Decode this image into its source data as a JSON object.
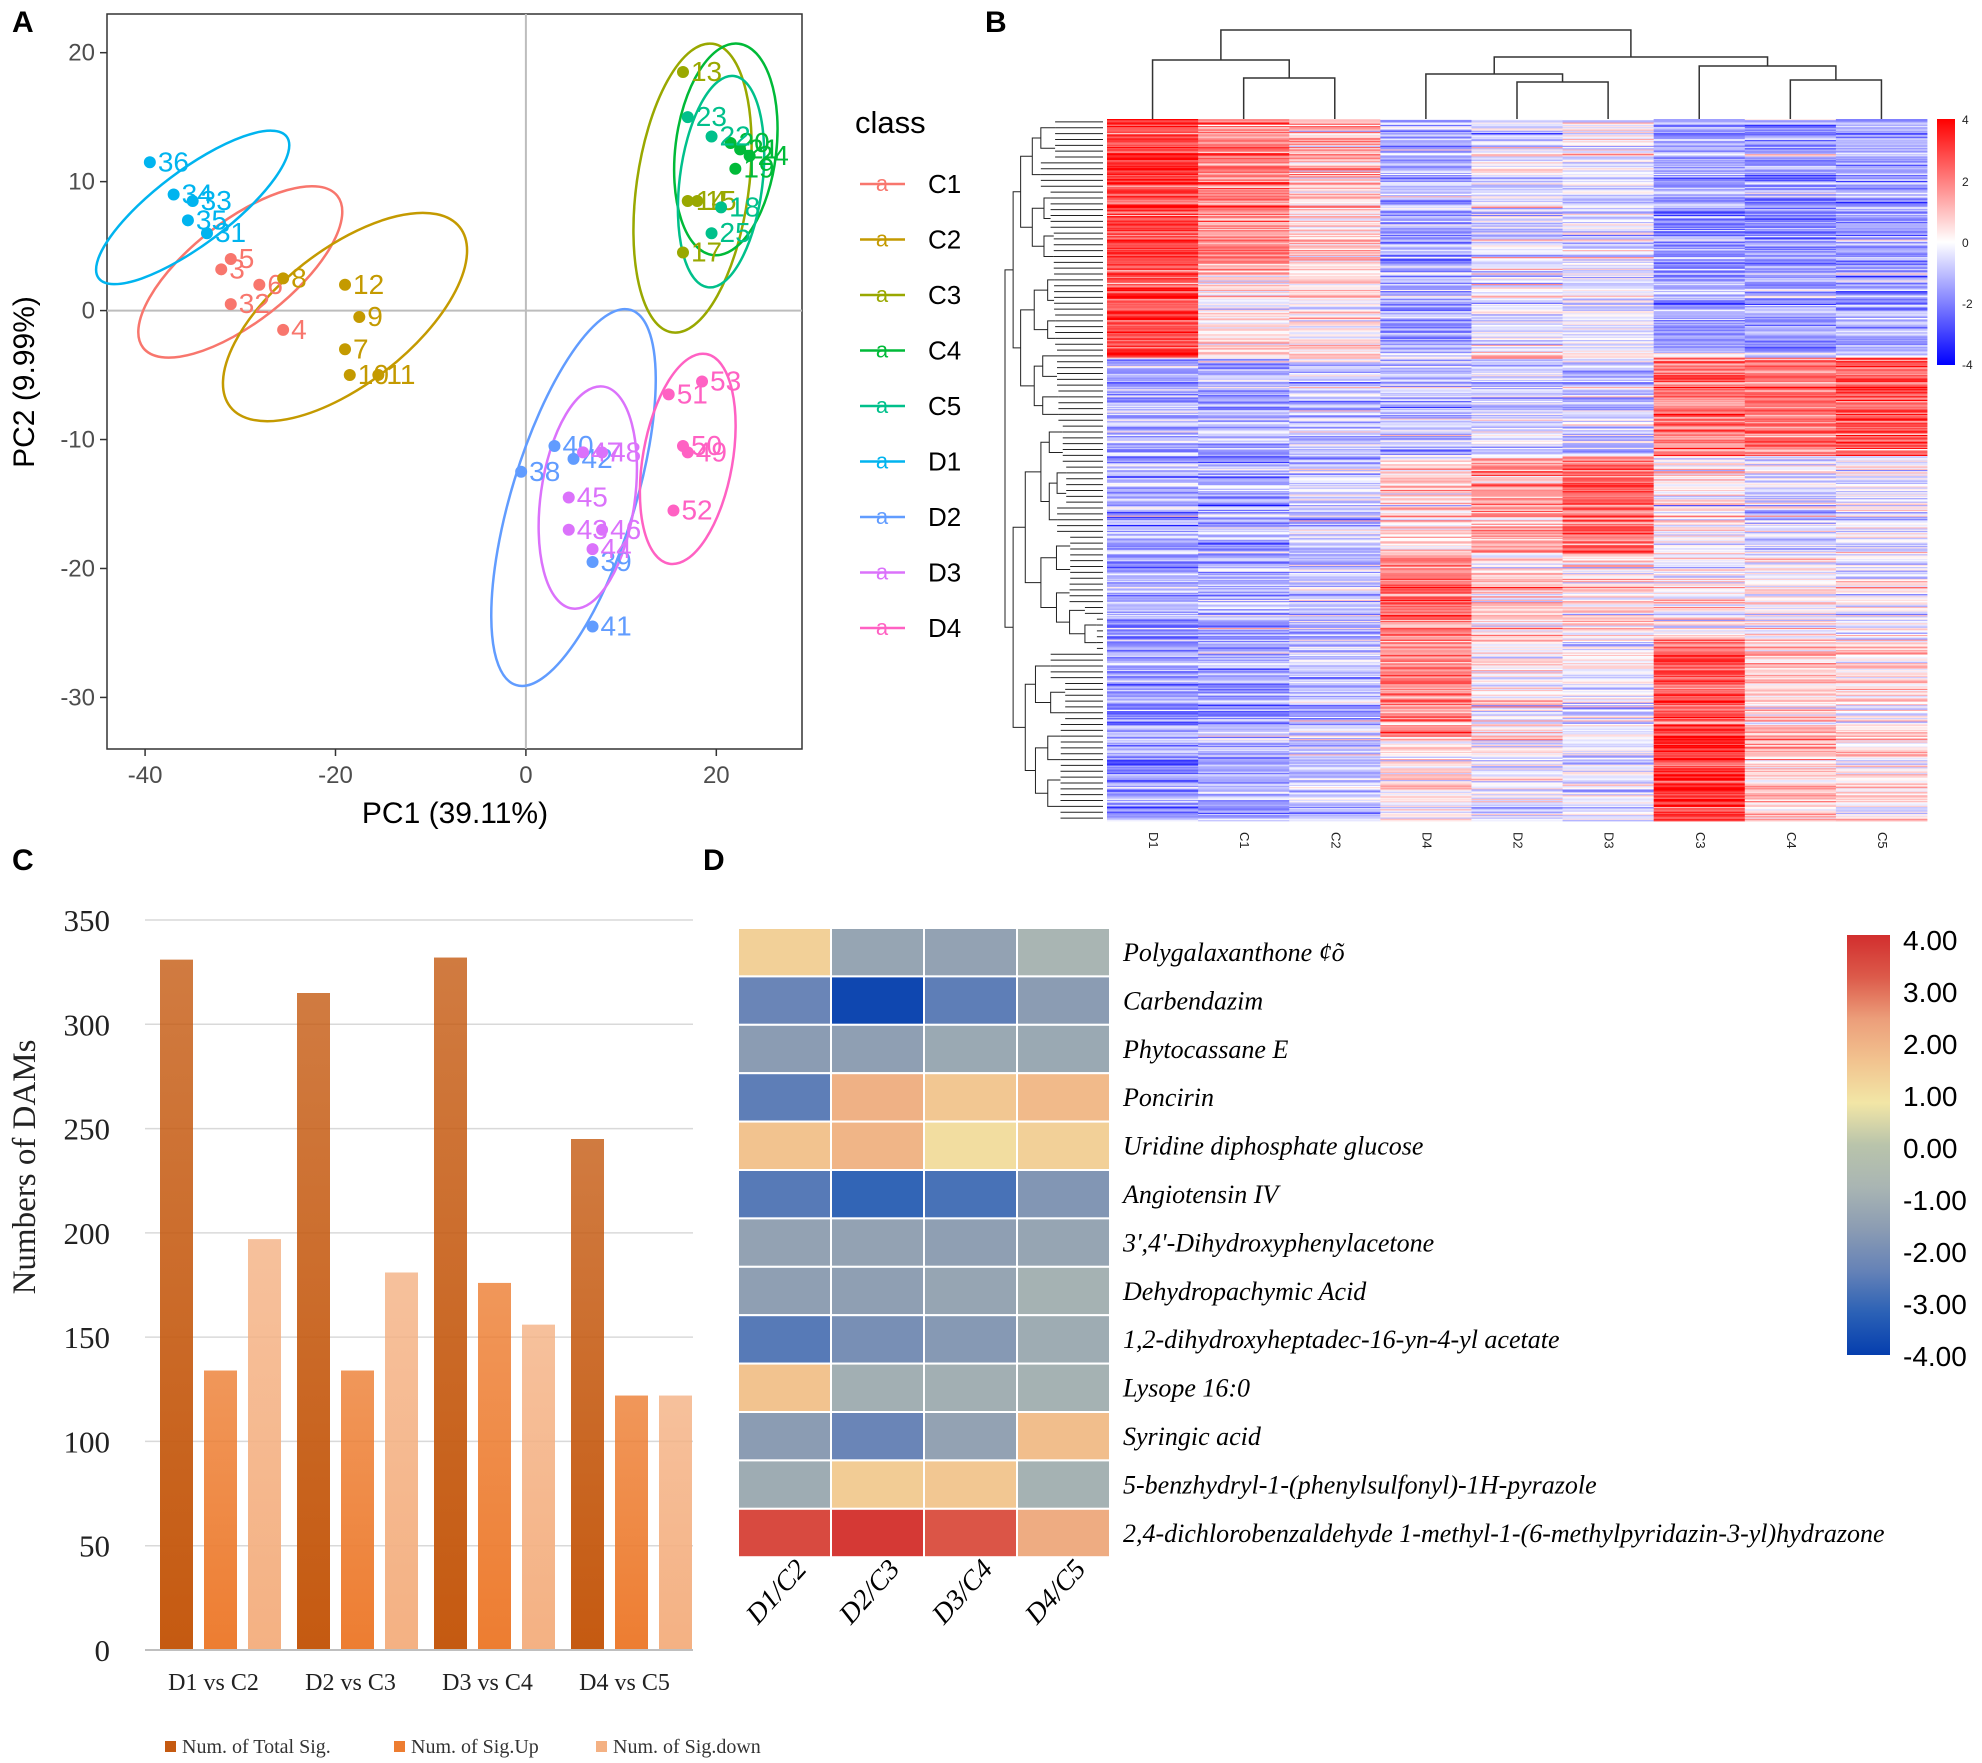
{
  "panels": {
    "A": "A",
    "B": "B",
    "C": "C",
    "D": "D"
  },
  "chart_data": [
    {
      "panel": "A",
      "type": "scatter",
      "xlabel": "PC1 (39.11%)",
      "ylabel": "PC2 (9.99%)",
      "xlim": [
        -44,
        29
      ],
      "ylim": [
        -34,
        23
      ],
      "xticks": [
        -40,
        -20,
        0,
        20
      ],
      "yticks": [
        20,
        10,
        0,
        -10,
        -20,
        -30
      ],
      "legend_title": "class",
      "legend_key_glyph": "a",
      "groups": [
        {
          "name": "C1",
          "color": "#F8766D",
          "ellipse": {
            "cx": -30,
            "cy": 3,
            "rx": 11,
            "ry": 4.5,
            "angle": -38
          },
          "points": [
            {
              "x": -31,
              "y": 4,
              "label": "5"
            },
            {
              "x": -32,
              "y": 3.2,
              "label": "3"
            },
            {
              "x": -28,
              "y": 2,
              "label": "6"
            },
            {
              "x": -31,
              "y": 0.5,
              "label": "32"
            },
            {
              "x": -25.5,
              "y": -1.5,
              "label": "4"
            }
          ]
        },
        {
          "name": "C2",
          "color": "#C49A00",
          "ellipse": {
            "cx": -19,
            "cy": -0.5,
            "rx": 13,
            "ry": 6,
            "angle": -38
          },
          "points": [
            {
              "x": -25.5,
              "y": 2.5,
              "label": "8"
            },
            {
              "x": -19,
              "y": 2,
              "label": "12"
            },
            {
              "x": -17.5,
              "y": -0.5,
              "label": "9"
            },
            {
              "x": -19,
              "y": -3,
              "label": "7"
            },
            {
              "x": -18.5,
              "y": -5,
              "label": "10"
            },
            {
              "x": -15.5,
              "y": -5,
              "label": "11"
            }
          ]
        },
        {
          "name": "C3",
          "color": "#99A800",
          "ellipse": {
            "cx": 17.5,
            "cy": 9.5,
            "rx": 13,
            "ry": 5,
            "angle": -82
          },
          "points": [
            {
              "x": 16.5,
              "y": 18.5,
              "label": "13"
            },
            {
              "x": 17,
              "y": 8.5,
              "label": "14"
            },
            {
              "x": 18,
              "y": 8.5,
              "label": "15"
            },
            {
              "x": 16.5,
              "y": 4.5,
              "label": "17"
            }
          ]
        },
        {
          "name": "C4",
          "color": "#00BA38",
          "ellipse": {
            "cx": 21,
            "cy": 12.5,
            "rx": 9.5,
            "ry": 4.5,
            "angle": -83
          },
          "points": [
            {
              "x": 21.5,
              "y": 13,
              "label": "20"
            },
            {
              "x": 22.5,
              "y": 12.5,
              "label": "21"
            },
            {
              "x": 23.5,
              "y": 12,
              "label": "24"
            },
            {
              "x": 22,
              "y": 11,
              "label": "19"
            }
          ]
        },
        {
          "name": "C5",
          "color": "#00C08B",
          "ellipse": {
            "cx": 20.5,
            "cy": 10,
            "rx": 9.5,
            "ry": 3.7,
            "angle": -83
          },
          "points": [
            {
              "x": 17,
              "y": 15,
              "label": "23"
            },
            {
              "x": 19.5,
              "y": 13.5,
              "label": "22"
            },
            {
              "x": 20.5,
              "y": 8,
              "label": "18"
            },
            {
              "x": 19.5,
              "y": 6,
              "label": "25"
            }
          ]
        },
        {
          "name": "D1",
          "color": "#00B4EF",
          "ellipse": {
            "cx": -35,
            "cy": 8,
            "rx": 10.5,
            "ry": 3.3,
            "angle": -37
          },
          "points": [
            {
              "x": -39.5,
              "y": 11.5,
              "label": "36"
            },
            {
              "x": -37,
              "y": 9,
              "label": "34"
            },
            {
              "x": -35,
              "y": 8.5,
              "label": "33"
            },
            {
              "x": -35.5,
              "y": 7,
              "label": "35"
            },
            {
              "x": -33.5,
              "y": 6,
              "label": "31"
            }
          ]
        },
        {
          "name": "D2",
          "color": "#619CFF",
          "ellipse": {
            "cx": 5,
            "cy": -14.5,
            "rx": 17.5,
            "ry": 5.5,
            "angle": -73
          },
          "points": [
            {
              "x": -0.5,
              "y": -12.5,
              "label": "38"
            },
            {
              "x": 3,
              "y": -10.5,
              "label": "40"
            },
            {
              "x": 5,
              "y": -11.5,
              "label": "42"
            },
            {
              "x": 7,
              "y": -19.5,
              "label": "39"
            },
            {
              "x": 7,
              "y": -24.5,
              "label": "41"
            }
          ]
        },
        {
          "name": "D3",
          "color": "#DB72FB",
          "ellipse": {
            "cx": 6.5,
            "cy": -14.5,
            "rx": 10,
            "ry": 4.2,
            "angle": -82
          },
          "points": [
            {
              "x": 6,
              "y": -11,
              "label": "47"
            },
            {
              "x": 8,
              "y": -11,
              "label": "48"
            },
            {
              "x": 4.5,
              "y": -14.5,
              "label": "45"
            },
            {
              "x": 4.5,
              "y": -17,
              "label": "43"
            },
            {
              "x": 8,
              "y": -17,
              "label": "46"
            },
            {
              "x": 7,
              "y": -18.5,
              "label": "44"
            }
          ]
        },
        {
          "name": "D4",
          "color": "#FF61C3",
          "ellipse": {
            "cx": 17,
            "cy": -11.5,
            "rx": 9.5,
            "ry": 4,
            "angle": -80
          },
          "points": [
            {
              "x": 15,
              "y": -6.5,
              "label": "51"
            },
            {
              "x": 18.5,
              "y": -5.5,
              "label": "53"
            },
            {
              "x": 16.5,
              "y": -10.5,
              "label": "50"
            },
            {
              "x": 17,
              "y": -11,
              "label": "49"
            },
            {
              "x": 15.5,
              "y": -15.5,
              "label": "52"
            }
          ]
        }
      ]
    },
    {
      "panel": "B",
      "type": "heatmap",
      "columns": [
        "D1",
        "C1",
        "C2",
        "D4",
        "D2",
        "D3",
        "C3",
        "C4",
        "C5"
      ],
      "colorbar_ticks": [
        "4",
        "2",
        "0",
        "-2",
        "-4"
      ],
      "colormap": [
        "#0000FF",
        "#FFFFFF",
        "#FF0000"
      ],
      "value_range": [
        -4,
        4
      ],
      "row_count": 600,
      "dendrogram_order": [
        "D1",
        "C1",
        "C2",
        "D4",
        "D2",
        "D3",
        "C3",
        "C4",
        "C5"
      ]
    },
    {
      "panel": "C",
      "type": "bar",
      "ylabel": "Numbers of DAMs",
      "ylim": [
        0,
        350
      ],
      "yticks": [
        0,
        50,
        100,
        150,
        200,
        250,
        300,
        350
      ],
      "categories": [
        "D1 vs C2",
        "D2 vs C3",
        "D3 vs C4",
        "D4 vs C5"
      ],
      "series": [
        {
          "name": "Num. of Total Sig.",
          "color": "#C55A11",
          "values": [
            331,
            315,
            332,
            245
          ]
        },
        {
          "name": "Num. of Sig.Up",
          "color": "#ED7D31",
          "values": [
            134,
            134,
            176,
            122
          ]
        },
        {
          "name": "Num. of Sig.down",
          "color": "#F4B183",
          "values": [
            197,
            181,
            156,
            122
          ]
        }
      ]
    },
    {
      "panel": "D",
      "type": "heatmap",
      "columns": [
        "D1/C2",
        "D2/C3",
        "D3/C4",
        "D4/C5"
      ],
      "rows": [
        {
          "name": "Polygalaxanthone ¢õ",
          "values": [
            1.3,
            -1.3,
            -1.4,
            -0.8
          ]
        },
        {
          "name": "Carbendazim",
          "values": [
            -2.3,
            -3.8,
            -2.5,
            -1.6
          ]
        },
        {
          "name": "Phytocassane E",
          "values": [
            -1.6,
            -1.5,
            -1.2,
            -1.2
          ]
        },
        {
          "name": "Poncirin",
          "values": [
            -2.5,
            2.0,
            1.5,
            1.8
          ]
        },
        {
          "name": "Uridine diphosphate glucose",
          "values": [
            1.6,
            1.9,
            1.0,
            1.3
          ]
        },
        {
          "name": "Angiotensin IV",
          "values": [
            -2.6,
            -3.1,
            -2.8,
            -1.8
          ]
        },
        {
          "name": "3',4'-Dihydroxyphenylacetone",
          "values": [
            -1.4,
            -1.4,
            -1.5,
            -1.3
          ]
        },
        {
          "name": "Dehydropachymic Acid",
          "values": [
            -1.5,
            -1.5,
            -1.3,
            -0.9
          ]
        },
        {
          "name": "1,2-dihydroxyheptadec-16-yn-4-yl acetate",
          "values": [
            -2.6,
            -2.0,
            -1.7,
            -1.1
          ]
        },
        {
          "name": "Lysope 16:0",
          "values": [
            1.6,
            -1.0,
            -1.0,
            -0.9
          ]
        },
        {
          "name": "Syringic acid",
          "values": [
            -1.6,
            -2.3,
            -1.4,
            1.7
          ]
        },
        {
          "name": "5-benzhydryl-1-(phenylsulfonyl)-1H-pyrazole",
          "values": [
            -1.1,
            1.4,
            1.5,
            -0.9
          ]
        },
        {
          "name": "2,4-dichlorobenzaldehyde 1-methyl-1-(6-methylpyridazin-3-yl)hydrazone",
          "values": [
            3.5,
            3.8,
            3.3,
            2.1
          ]
        }
      ],
      "colorbar_ticks": [
        "4.00",
        "3.00",
        "2.00",
        "1.00",
        "0.00",
        "-1.00",
        "-2.00",
        "-3.00",
        "-4.00"
      ],
      "value_range": [
        -4,
        4
      ],
      "colormap": [
        "#053EAE",
        "#2B61B6",
        "#6582B7",
        "#8B9CB3",
        "#A9B5B3",
        "#B9C4AB",
        "#F2E6A6",
        "#F2C38F",
        "#EC9E7A",
        "#DC5A4A",
        "#D22E2E"
      ]
    }
  ]
}
